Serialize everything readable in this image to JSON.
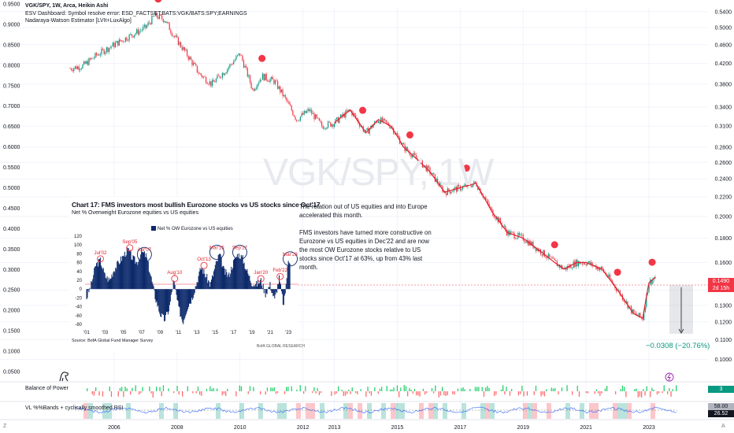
{
  "header": {
    "title": "VGK/SPY, 1W, Arca, Heikin Ashi",
    "error_line": "ESV Dashboard: Symbol resolve error: ESD_FACTSET:BATS:VGK/BATS:SPY;EARNINGS",
    "indicator": "Nadaraya-Watson Estimator [LVIt+LuxAlgo]"
  },
  "watermark": "VGK/SPY, 1W",
  "colors": {
    "up": "#089981",
    "down": "#f23645",
    "estimator": "#e0202a",
    "bars": "#0d2a6b",
    "grid": "#f0f3fa"
  },
  "chart_data": [
    {
      "type": "line",
      "title": "VGK/SPY, 1W, Arca, Heikin Ashi",
      "x": [
        2004.6,
        2005.0,
        2005.5,
        2006.0,
        2006.5,
        2007.0,
        2007.3,
        2007.6,
        2007.9,
        2008.3,
        2008.7,
        2009.1,
        2009.6,
        2010.0,
        2010.4,
        2010.7,
        2011.1,
        2011.8,
        2012.2,
        2012.6,
        2013.0,
        2013.5,
        2014.0,
        2014.4,
        2014.8,
        2015.2,
        2015.6,
        2016.0,
        2016.5,
        2017.0,
        2017.5,
        2018.0,
        2018.5,
        2019.0,
        2019.5,
        2020.0,
        2020.3,
        2020.7,
        2021.0,
        2021.5,
        2022.0,
        2022.5,
        2022.8,
        2023.0,
        2023.2
      ],
      "y": [
        0.41,
        0.415,
        0.44,
        0.46,
        0.48,
        0.5,
        0.53,
        0.52,
        0.48,
        0.44,
        0.4,
        0.38,
        0.41,
        0.44,
        0.37,
        0.395,
        0.385,
        0.32,
        0.335,
        0.31,
        0.315,
        0.335,
        0.3,
        0.32,
        0.31,
        0.28,
        0.265,
        0.25,
        0.225,
        0.23,
        0.235,
        0.205,
        0.185,
        0.18,
        0.17,
        0.16,
        0.155,
        0.16,
        0.16,
        0.155,
        0.14,
        0.125,
        0.122,
        0.145,
        0.149
      ],
      "y_scale": "log",
      "ylim": [
        0.095,
        0.55
      ],
      "y_ticks_left": [
        0.95,
        0.9,
        0.85,
        0.8,
        0.75,
        0.7,
        0.65,
        0.6,
        0.55,
        0.5,
        0.45,
        0.4,
        0.35,
        0.3,
        0.25,
        0.2,
        0.15,
        0.1,
        0.05
      ],
      "y_ticks_right": [
        0.54,
        0.5,
        0.46,
        0.42,
        0.38,
        0.34,
        0.31,
        0.28,
        0.26,
        0.24,
        0.22,
        0.2,
        0.18,
        0.16,
        0.14,
        0.13,
        0.12,
        0.11,
        0.1
      ],
      "x_ticks": [
        "2006",
        "2008",
        "2010",
        "2012",
        "2013",
        "2015",
        "2017",
        "2019",
        "2021",
        "2023"
      ],
      "x_tick_values": [
        2006,
        2008,
        2010,
        2012,
        2013,
        2015,
        2017,
        2019,
        2021,
        2023
      ],
      "grid": true,
      "sell_dots_x": [
        2007.4,
        2010.7,
        2013.9,
        2015.4,
        2017.2,
        2020.0,
        2022.0,
        2023.1
      ],
      "last_price": "0.1490",
      "countdown": "2d 15h",
      "measure_change": "−0.0308 (−20.76%)"
    },
    {
      "type": "bar",
      "title": "Chart 17: FMS investors most bullish Eurozone stocks vs US stocks since Oct'17",
      "subtitle": "Net % Overweight Eurozone equities vs US equities",
      "series": [
        {
          "name": "Net % OW Eurozone vs US equities"
        }
      ],
      "x": [
        2001.0,
        2001.5,
        2002.0,
        2002.5,
        2003.0,
        2003.5,
        2004.0,
        2004.5,
        2005.0,
        2005.5,
        2006.0,
        2006.5,
        2007.0,
        2007.5,
        2008.0,
        2008.5,
        2009.0,
        2009.5,
        2010.0,
        2010.5,
        2011.0,
        2011.5,
        2012.0,
        2012.5,
        2013.0,
        2013.5,
        2014.0,
        2014.5,
        2015.0,
        2015.5,
        2016.0,
        2016.5,
        2017.0,
        2017.5,
        2018.0,
        2018.5,
        2019.0,
        2019.5,
        2020.0,
        2020.5,
        2021.0,
        2021.5,
        2022.0,
        2022.5,
        2023.0
      ],
      "values": [
        -20,
        10,
        55,
        65,
        30,
        20,
        45,
        60,
        75,
        90,
        70,
        60,
        85,
        75,
        30,
        -20,
        -55,
        -70,
        -45,
        20,
        -40,
        -75,
        -40,
        -20,
        15,
        50,
        30,
        10,
        50,
        80,
        40,
        30,
        60,
        80,
        70,
        40,
        15,
        10,
        20,
        -10,
        10,
        -25,
        25,
        -40,
        65
      ],
      "ylim": [
        -80,
        120
      ],
      "y_ticks": [
        "120",
        "100",
        "80",
        "60",
        "40",
        "20",
        "0",
        "-20",
        "-40",
        "-60",
        "-80"
      ],
      "x_ticks": [
        "'01",
        "'03",
        "'05",
        "'07",
        "'09",
        "'11",
        "'13",
        "'15",
        "'17",
        "'19",
        "'21",
        "'23"
      ],
      "annotations": [
        {
          "label": "Jul'02",
          "x": 2002.5,
          "y": 65
        },
        {
          "label": "Sep'05",
          "x": 2005.7,
          "y": 90
        },
        {
          "label": "Apr'07",
          "x": 2007.3,
          "y": 75
        },
        {
          "label": "Aug'10",
          "x": 2010.6,
          "y": 20
        },
        {
          "label": "Oct'13",
          "x": 2013.8,
          "y": 50
        },
        {
          "label": "Mar'15",
          "x": 2015.2,
          "y": 80
        },
        {
          "label": "Sep'17",
          "x": 2017.7,
          "y": 80
        },
        {
          "label": "Jan'20",
          "x": 2020.0,
          "y": 20
        },
        {
          "label": "Feb'22",
          "x": 2022.1,
          "y": 25
        },
        {
          "label": "Mar'23",
          "x": 2023.2,
          "y": 65
        }
      ],
      "source": "Source: BofA Global Fund Manager Survey",
      "brand": "BofA GLOBAL RESEARCH"
    }
  ],
  "inset_text": {
    "p1": "The rotation out of US equities and into Europe accelerated this month.",
    "p2": "FMS investors have turned more constructive on Eurozone vs US equities in Dec'22 and are now the most OW Eurozone stocks relative to US stocks since Oct'17 at 63%, up from 43% last month."
  },
  "panes": {
    "bop": {
      "label": "Balance of Power",
      "value": "3"
    },
    "rsi": {
      "label": "VL %%Bands + cyclically smoothed RSI",
      "value1": "58.00",
      "value2": "26.52"
    }
  },
  "footer": {
    "left_tag": "Z",
    "right_tag": "A"
  }
}
